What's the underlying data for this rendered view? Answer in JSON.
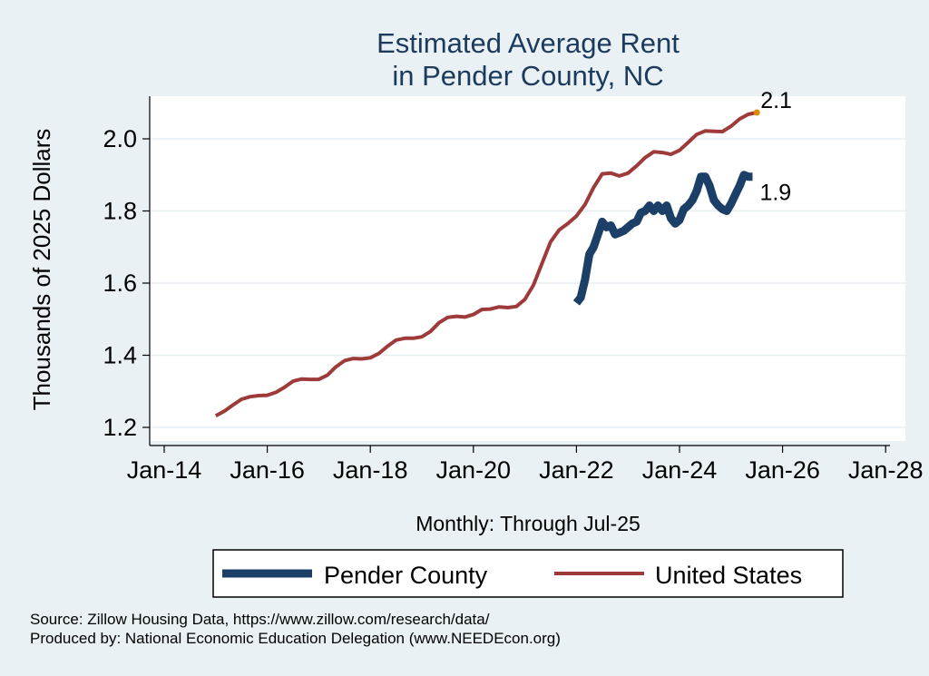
{
  "chart_data": {
    "type": "line",
    "title": [
      "Estimated Average Rent",
      "in Pender County, NC"
    ],
    "xlabel": "Monthly: Through Jul-25",
    "ylabel": "Thousands of 2025 Dollars",
    "xlim": [
      "2014-01",
      "2028-01"
    ],
    "x_ticks": [
      "Jan-14",
      "Jan-16",
      "Jan-18",
      "Jan-20",
      "Jan-22",
      "Jan-24",
      "Jan-26",
      "Jan-28"
    ],
    "ylim": [
      1.2,
      2.1
    ],
    "y_ticks": [
      "1.2",
      "1.4",
      "1.6",
      "1.8",
      "2.0"
    ],
    "grid": true,
    "legend_position": "bottom",
    "series": [
      {
        "name": "Pender County",
        "color": "#1b3f66",
        "end_label": "1.9",
        "points": [
          [
            "2022-01",
            1.545
          ],
          [
            "2022-02",
            1.56
          ],
          [
            "2022-03",
            1.61
          ],
          [
            "2022-04",
            1.68
          ],
          [
            "2022-05",
            1.7
          ],
          [
            "2022-06",
            1.735
          ],
          [
            "2022-07",
            1.77
          ],
          [
            "2022-08",
            1.755
          ],
          [
            "2022-09",
            1.76
          ],
          [
            "2022-10",
            1.735
          ],
          [
            "2022-11",
            1.74
          ],
          [
            "2022-12",
            1.745
          ],
          [
            "2023-01",
            1.755
          ],
          [
            "2023-02",
            1.765
          ],
          [
            "2023-03",
            1.77
          ],
          [
            "2023-04",
            1.795
          ],
          [
            "2023-05",
            1.8
          ],
          [
            "2023-06",
            1.815
          ],
          [
            "2023-07",
            1.8
          ],
          [
            "2023-08",
            1.815
          ],
          [
            "2023-09",
            1.8
          ],
          [
            "2023-10",
            1.815
          ],
          [
            "2023-11",
            1.78
          ],
          [
            "2023-12",
            1.765
          ],
          [
            "2024-01",
            1.775
          ],
          [
            "2024-02",
            1.805
          ],
          [
            "2024-03",
            1.815
          ],
          [
            "2024-04",
            1.83
          ],
          [
            "2024-05",
            1.855
          ],
          [
            "2024-06",
            1.895
          ],
          [
            "2024-07",
            1.895
          ],
          [
            "2024-08",
            1.87
          ],
          [
            "2024-09",
            1.83
          ],
          [
            "2024-10",
            1.815
          ],
          [
            "2024-11",
            1.805
          ],
          [
            "2024-12",
            1.8
          ],
          [
            "2025-01",
            1.82
          ],
          [
            "2025-02",
            1.845
          ],
          [
            "2025-03",
            1.87
          ],
          [
            "2025-04",
            1.9
          ],
          [
            "2025-05",
            1.895
          ],
          [
            "2025-06",
            1.895
          ]
        ]
      },
      {
        "name": "United States",
        "color": "#9e3a3a",
        "end_label": "2.1",
        "points": [
          [
            "2015-01",
            1.232
          ],
          [
            "2015-03",
            1.245
          ],
          [
            "2015-05",
            1.262
          ],
          [
            "2015-07",
            1.278
          ],
          [
            "2015-09",
            1.285
          ],
          [
            "2015-11",
            1.288
          ],
          [
            "2016-01",
            1.289
          ],
          [
            "2016-03",
            1.297
          ],
          [
            "2016-05",
            1.311
          ],
          [
            "2016-07",
            1.328
          ],
          [
            "2016-09",
            1.334
          ],
          [
            "2016-11",
            1.333
          ],
          [
            "2017-01",
            1.333
          ],
          [
            "2017-03",
            1.345
          ],
          [
            "2017-05",
            1.368
          ],
          [
            "2017-07",
            1.385
          ],
          [
            "2017-09",
            1.391
          ],
          [
            "2017-11",
            1.39
          ],
          [
            "2018-01",
            1.393
          ],
          [
            "2018-03",
            1.405
          ],
          [
            "2018-05",
            1.425
          ],
          [
            "2018-07",
            1.442
          ],
          [
            "2018-09",
            1.447
          ],
          [
            "2018-11",
            1.447
          ],
          [
            "2019-01",
            1.451
          ],
          [
            "2019-03",
            1.466
          ],
          [
            "2019-05",
            1.49
          ],
          [
            "2019-07",
            1.505
          ],
          [
            "2019-09",
            1.508
          ],
          [
            "2019-11",
            1.506
          ],
          [
            "2020-01",
            1.513
          ],
          [
            "2020-03",
            1.527
          ],
          [
            "2020-05",
            1.528
          ],
          [
            "2020-07",
            1.534
          ],
          [
            "2020-09",
            1.532
          ],
          [
            "2020-11",
            1.535
          ],
          [
            "2021-01",
            1.555
          ],
          [
            "2021-03",
            1.595
          ],
          [
            "2021-05",
            1.655
          ],
          [
            "2021-07",
            1.715
          ],
          [
            "2021-09",
            1.748
          ],
          [
            "2021-11",
            1.765
          ],
          [
            "2022-01",
            1.786
          ],
          [
            "2022-03",
            1.818
          ],
          [
            "2022-05",
            1.865
          ],
          [
            "2022-07",
            1.903
          ],
          [
            "2022-09",
            1.905
          ],
          [
            "2022-11",
            1.897
          ],
          [
            "2023-01",
            1.905
          ],
          [
            "2023-03",
            1.925
          ],
          [
            "2023-05",
            1.948
          ],
          [
            "2023-07",
            1.964
          ],
          [
            "2023-09",
            1.962
          ],
          [
            "2023-11",
            1.957
          ],
          [
            "2024-01",
            1.968
          ],
          [
            "2024-03",
            1.99
          ],
          [
            "2024-05",
            2.012
          ],
          [
            "2024-07",
            2.022
          ],
          [
            "2024-09",
            2.021
          ],
          [
            "2024-11",
            2.02
          ],
          [
            "2025-01",
            2.035
          ],
          [
            "2025-03",
            2.055
          ],
          [
            "2025-05",
            2.068
          ],
          [
            "2025-07",
            2.073
          ]
        ]
      }
    ],
    "highlight_point": {
      "series": "United States",
      "x": "2025-07",
      "y": 2.073,
      "color": "#e08a00"
    }
  },
  "source_note": "Source: Zillow Housing Data, https://www.zillow.com/research/data/",
  "producer_note": "Produced by: National Economic Education Delegation (www.NEEDEcon.org)"
}
